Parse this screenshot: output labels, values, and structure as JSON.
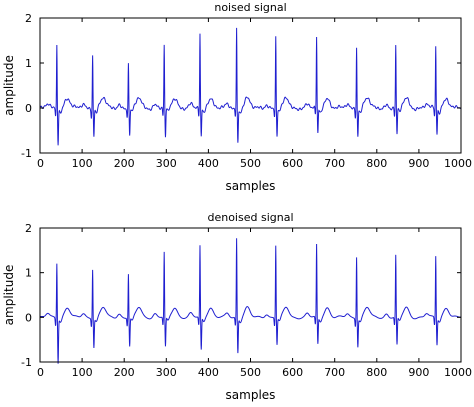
{
  "chart_data": [
    {
      "type": "line",
      "title": "noised signal",
      "xlabel": "samples",
      "ylabel": "amplitude",
      "xlim": [
        0,
        1000
      ],
      "ylim": [
        -1,
        2
      ],
      "xticks": [
        "0",
        "100",
        "200",
        "300",
        "400",
        "500",
        "600",
        "700",
        "800",
        "900",
        "1000"
      ],
      "yticks": [
        "2",
        "1",
        "0",
        "-1"
      ],
      "grid": false,
      "color": "#1f1fd0",
      "peaks": [
        {
          "x": 40,
          "r": 1.43,
          "s": -0.72
        },
        {
          "x": 125,
          "r": 1.2,
          "s": -0.55
        },
        {
          "x": 210,
          "r": 0.98,
          "s": -0.55
        },
        {
          "x": 295,
          "r": 1.38,
          "s": -0.6
        },
        {
          "x": 380,
          "r": 1.65,
          "s": -0.6
        },
        {
          "x": 467,
          "r": 1.76,
          "s": -0.68
        },
        {
          "x": 560,
          "r": 1.58,
          "s": -0.55
        },
        {
          "x": 657,
          "r": 1.58,
          "s": -0.52
        },
        {
          "x": 752,
          "r": 1.38,
          "s": -0.55
        },
        {
          "x": 845,
          "r": 1.38,
          "s": -0.55
        },
        {
          "x": 940,
          "r": 1.38,
          "s": -0.52
        }
      ]
    },
    {
      "type": "line",
      "title": "denoised signal",
      "xlabel": "samples",
      "ylabel": "amplitude",
      "xlim": [
        0,
        1000
      ],
      "ylim": [
        -1,
        2
      ],
      "xticks": [
        "0",
        "100",
        "200",
        "300",
        "400",
        "500",
        "600",
        "700",
        "800",
        "900",
        "1000"
      ],
      "yticks": [
        "2",
        "1",
        "0",
        "-1"
      ],
      "grid": false,
      "color": "#1f1fd0",
      "peaks": [
        {
          "x": 40,
          "r": 1.23,
          "s": -0.95
        },
        {
          "x": 125,
          "r": 1.1,
          "s": -0.6
        },
        {
          "x": 210,
          "r": 0.98,
          "s": -0.6
        },
        {
          "x": 295,
          "r": 1.45,
          "s": -0.62
        },
        {
          "x": 380,
          "r": 1.6,
          "s": -0.68
        },
        {
          "x": 467,
          "r": 1.78,
          "s": -0.73
        },
        {
          "x": 560,
          "r": 1.62,
          "s": -0.55
        },
        {
          "x": 657,
          "r": 1.62,
          "s": -0.55
        },
        {
          "x": 752,
          "r": 1.38,
          "s": -0.58
        },
        {
          "x": 845,
          "r": 1.38,
          "s": -0.58
        },
        {
          "x": 940,
          "r": 1.38,
          "s": -0.55
        }
      ]
    }
  ]
}
